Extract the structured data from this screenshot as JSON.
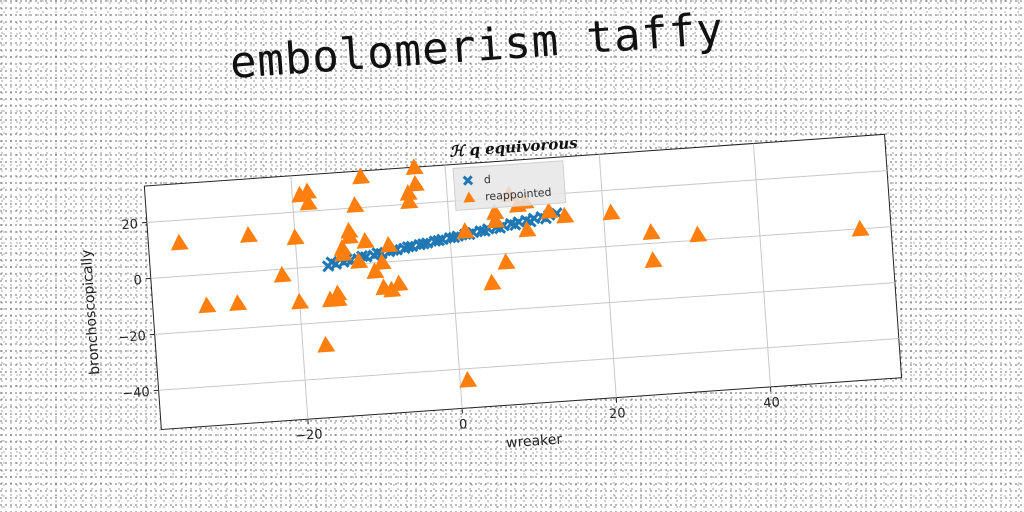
{
  "page_title": "embolomerism taffy",
  "chart_data": {
    "type": "scatter",
    "title": "ℋ q equivorous",
    "xlabel": "wreaker",
    "ylabel": "bronchoscopically",
    "xlim": [
      -39,
      57
    ],
    "ylim": [
      -54,
      33
    ],
    "xticks": [
      -20,
      0,
      20,
      40
    ],
    "yticks": [
      -40,
      -20,
      0,
      20
    ],
    "grid": true,
    "legend_position": "top-center",
    "series": [
      {
        "name": "d",
        "marker": "x",
        "color": "#1f77b4",
        "x": [
          -16,
          -15,
          -14,
          -13,
          -12,
          -11,
          -10,
          -9,
          -8,
          -7,
          -6,
          -5,
          -4,
          -3,
          -2,
          -1,
          0,
          1,
          2,
          3,
          4,
          5,
          6,
          7,
          8,
          9,
          10,
          11,
          12,
          13,
          14,
          -15.5,
          -13.5,
          -11.5,
          -9.5,
          -7.5,
          -5.5,
          -3.5,
          -1.5,
          0.5,
          2.5,
          4.5,
          6.5,
          8.5,
          10.5,
          12.5
        ],
        "y": [
          0,
          0.5,
          1,
          1.4,
          1.8,
          2.3,
          2.7,
          3.1,
          3.6,
          4,
          4.4,
          4.9,
          5.3,
          5.7,
          6.2,
          6.6,
          7,
          7.4,
          7.9,
          8.3,
          8.7,
          9.2,
          9.6,
          10,
          10.5,
          10.9,
          11.3,
          11.8,
          12.2,
          12.6,
          13,
          1.3,
          1.9,
          2.6,
          3.4,
          4,
          4.8,
          5.5,
          6.3,
          7,
          7.7,
          8.5,
          9.2,
          10,
          10.7,
          11.5
        ]
      },
      {
        "name": "reappointed",
        "marker": "^",
        "color": "#ff7f0e",
        "x": [
          -35,
          -32,
          -28,
          -26,
          -22,
          -20,
          -20,
          -19,
          -18,
          -18,
          -17,
          -16,
          -15,
          -15,
          -14,
          -14,
          -13,
          -13,
          -12,
          -12,
          -11,
          -11,
          -10,
          -9,
          -9,
          -8,
          -8,
          -7,
          -5,
          -5,
          -4,
          -4,
          1,
          2,
          5,
          6,
          6,
          7,
          8,
          9,
          10,
          10,
          13,
          15,
          21,
          26,
          26,
          32,
          53
        ],
        "y": [
          12,
          -11,
          -11,
          13,
          -2,
          -12,
          11,
          26,
          23,
          27,
          -28,
          -12,
          -12,
          -10,
          6,
          4,
          10,
          12,
          1,
          21,
          8,
          31,
          -3,
          -9,
          0,
          -10,
          6,
          -8,
          21,
          24,
          33,
          27,
          -44,
          9,
          -10,
          12,
          15,
          -3,
          21,
          17,
          8,
          18,
          14,
          12,
          12,
          4,
          -6,
          2,
          0
        ]
      }
    ]
  }
}
